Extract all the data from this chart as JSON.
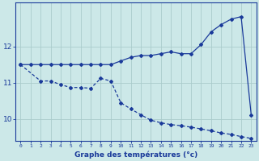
{
  "xlabel": "Graphe des températures (°c)",
  "background_color": "#cce8e8",
  "grid_color": "#aacccc",
  "line_color": "#1a3a9a",
  "yticks": [
    10,
    11,
    12
  ],
  "xticks": [
    0,
    1,
    2,
    3,
    4,
    5,
    6,
    7,
    8,
    9,
    10,
    11,
    12,
    13,
    14,
    15,
    16,
    17,
    18,
    19,
    20,
    21,
    22,
    23
  ],
  "upper_x": [
    0,
    1,
    2,
    3,
    4,
    5,
    6,
    7,
    8,
    9,
    10,
    11,
    12,
    13,
    14,
    15,
    16,
    17,
    18,
    19,
    20,
    21,
    22,
    23
  ],
  "upper_y": [
    11.5,
    11.5,
    11.5,
    11.5,
    11.5,
    11.5,
    11.5,
    11.5,
    11.5,
    11.5,
    11.6,
    11.7,
    11.75,
    11.75,
    11.8,
    11.85,
    11.8,
    11.8,
    12.05,
    12.4,
    12.6,
    12.75,
    12.82,
    10.12
  ],
  "lower_x": [
    0,
    2,
    3,
    4,
    5,
    6,
    7,
    8,
    9,
    10,
    11,
    12,
    13,
    14,
    15,
    16,
    17,
    18,
    19,
    20,
    21,
    22,
    23
  ],
  "lower_y": [
    11.5,
    11.05,
    11.05,
    10.95,
    10.87,
    10.87,
    10.85,
    11.12,
    11.05,
    10.45,
    10.28,
    10.12,
    9.97,
    9.9,
    9.85,
    9.82,
    9.78,
    9.73,
    9.68,
    9.62,
    9.58,
    9.52,
    9.47
  ],
  "ylim": [
    9.4,
    13.2
  ],
  "xlim": [
    -0.5,
    23.5
  ]
}
